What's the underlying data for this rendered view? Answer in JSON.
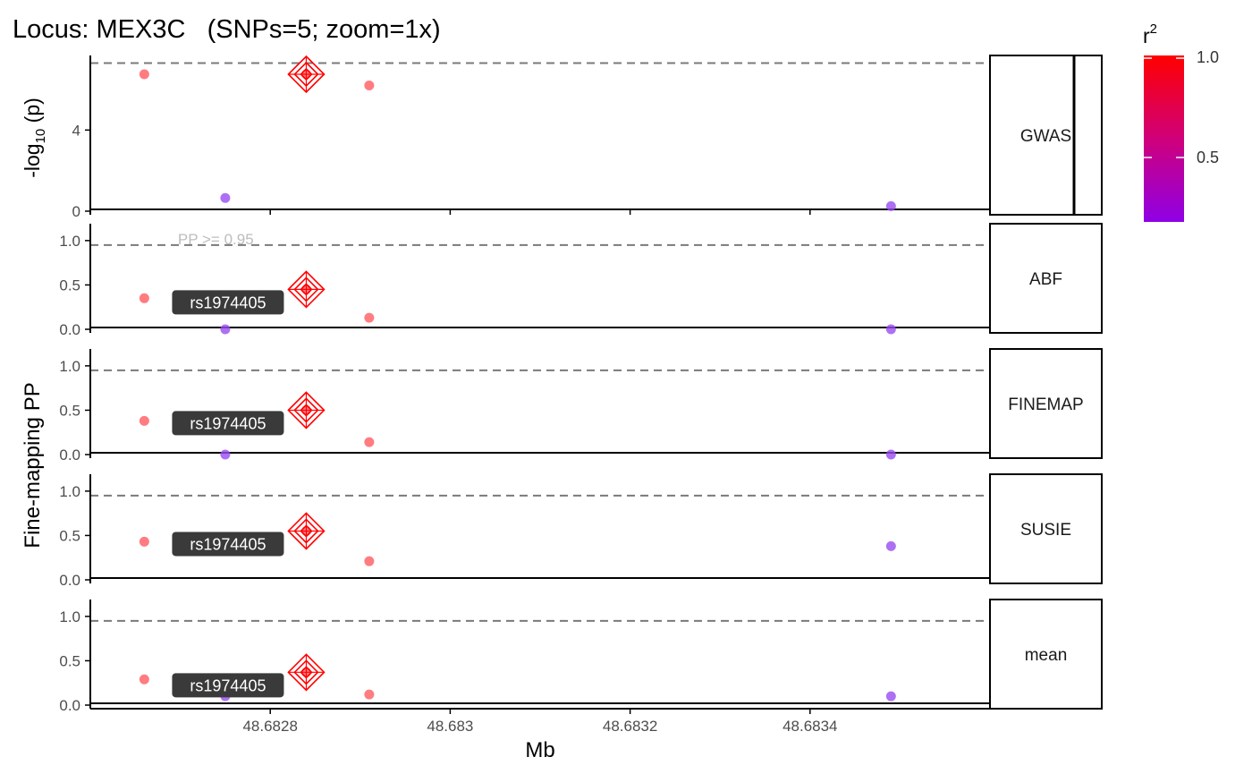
{
  "figure": {
    "title": "Locus: MEX3C   (SNPs=5; zoom=1x)",
    "ylabel_gwas_prefix": "-log",
    "ylabel_gwas_sub": "10",
    "ylabel_gwas_suffix": " (p)",
    "ylabel_finemap": "Fine-mapping PP",
    "xlabel": "Mb",
    "threshold_label": "PP >= 0.95",
    "lead_snp_label": "rs1974405",
    "legend": {
      "title_base": "r",
      "title_sup": "2",
      "ticks": [
        "1.0",
        "0.5"
      ],
      "gradient": [
        "#ff0000",
        "#d0007a",
        "#8f00e6"
      ]
    },
    "colors": {
      "high_ld_point": "#ff5b61",
      "low_ld_point": "#9a4cf0",
      "lead_marker": "#ff0000",
      "threshold_line": "#7a7a7a"
    }
  },
  "chart_data": {
    "type": "scatter",
    "x_unit": "Mb",
    "xlim": [
      48.6826,
      48.6836
    ],
    "x_ticks": [
      48.6828,
      48.683,
      48.6832,
      48.6834
    ],
    "x_tick_labels": [
      "48.6828",
      "48.683",
      "48.6832",
      "48.6834"
    ],
    "snp_x": [
      48.68266,
      48.68275,
      48.68284,
      48.68291,
      48.68349
    ],
    "snp_r2": [
      1.0,
      0.2,
      1.0,
      1.0,
      0.2
    ],
    "lead_snp_index": 2,
    "lead_snp_label": "rs1974405",
    "panels": [
      {
        "name": "GWAS",
        "ylim": [
          0,
          7.5
        ],
        "y_ticks": [
          0,
          4
        ],
        "y_tick_labels": [
          "0",
          "4"
        ],
        "threshold": 7.3,
        "values": [
          6.75,
          0.65,
          6.75,
          6.2,
          0.25
        ]
      },
      {
        "name": "ABF",
        "ylim": [
          0,
          1.15
        ],
        "y_ticks": [
          0,
          0.5,
          1
        ],
        "y_tick_labels": [
          "0.0",
          "0.5",
          "1.0"
        ],
        "threshold": 0.95,
        "values": [
          0.35,
          0.0,
          0.45,
          0.13,
          0.0
        ]
      },
      {
        "name": "FINEMAP",
        "ylim": [
          0,
          1.15
        ],
        "y_ticks": [
          0,
          0.5,
          1
        ],
        "y_tick_labels": [
          "0.0",
          "0.5",
          "1.0"
        ],
        "threshold": 0.95,
        "values": [
          0.38,
          0.0,
          0.5,
          0.14,
          0.0
        ]
      },
      {
        "name": "SUSIE",
        "ylim": [
          0,
          1.15
        ],
        "y_ticks": [
          0,
          0.5,
          1
        ],
        "y_tick_labels": [
          "0.0",
          "0.5",
          "1.0"
        ],
        "threshold": 0.95,
        "values": [
          0.43,
          0.45,
          0.55,
          0.21,
          0.38
        ]
      },
      {
        "name": "mean",
        "ylim": [
          0,
          1.15
        ],
        "y_ticks": [
          0,
          0.5,
          1
        ],
        "y_tick_labels": [
          "0.0",
          "0.5",
          "1.0"
        ],
        "threshold": 0.95,
        "values": [
          0.29,
          0.1,
          0.37,
          0.12,
          0.1
        ]
      }
    ]
  }
}
